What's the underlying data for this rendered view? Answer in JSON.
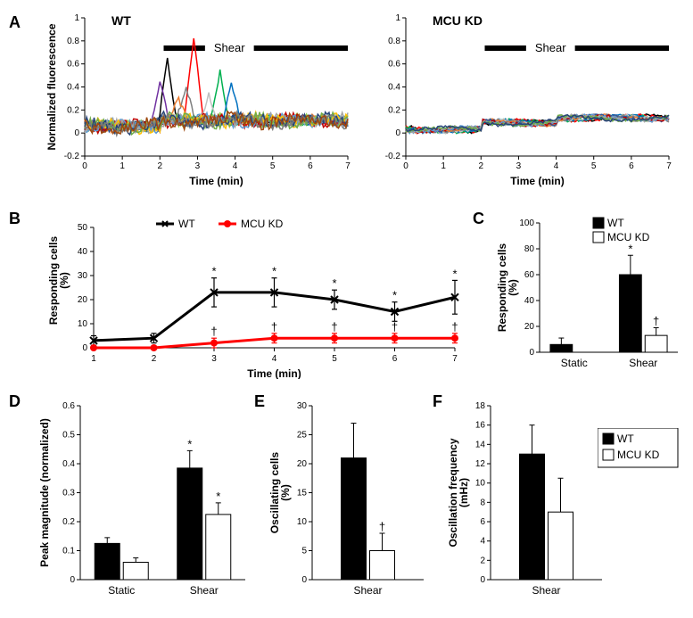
{
  "labels": {
    "A": "A",
    "B": "B",
    "C": "C",
    "D": "D",
    "E": "E",
    "F": "F"
  },
  "panelA": {
    "left_title": "WT",
    "right_title": "MCU KD",
    "shear_label": "Shear",
    "ylabel": "Normalized fluorescence",
    "xlabel": "Time (min)",
    "ylim": [
      -0.2,
      1.0
    ],
    "ytick_step": 0.2,
    "xlim": [
      0,
      7
    ],
    "xtick_step": 1,
    "shear_bars": [
      [
        2.1,
        3.2
      ],
      [
        4.5,
        7.0
      ]
    ],
    "wt_traces_colors": [
      "#000000",
      "#7030a0",
      "#ff0000",
      "#00b050",
      "#0070c0",
      "#c0c0c0",
      "#808080",
      "#ed7d31",
      "#2f5597",
      "#92d050",
      "#c00000",
      "#5b9bd5",
      "#a5a5a5",
      "#ffc000",
      "#70ad47",
      "#264478",
      "#7b7b7b",
      "#9e480e"
    ],
    "kd_traces_colors": [
      "#000000",
      "#ff0000",
      "#00b050",
      "#0070c0",
      "#c0c0c0",
      "#808080",
      "#ed7d31",
      "#2f5597",
      "#c00000",
      "#5b9bd5",
      "#a5a5a5",
      "#70ad47",
      "#264478"
    ],
    "label_fontsize": 12
  },
  "panelB": {
    "ylabel_l1": "Responding cells",
    "ylabel_l2": "(%)",
    "xlabel": "Time (min)",
    "ylim": [
      0,
      50
    ],
    "ytick_step": 10,
    "xticks": [
      1,
      2,
      3,
      4,
      5,
      6,
      7
    ],
    "wt": {
      "label": "WT",
      "color": "#000000",
      "marker": "x",
      "values": [
        3,
        4,
        23,
        23,
        20,
        15,
        21
      ],
      "err": [
        2,
        2,
        6,
        6,
        4,
        4,
        7
      ],
      "sig": [
        "",
        "",
        "*",
        "*",
        "*",
        "*",
        "*"
      ]
    },
    "kd": {
      "label": "MCU KD",
      "color": "#ff0000",
      "marker": "o",
      "values": [
        0,
        0,
        2,
        4,
        4,
        4,
        4
      ],
      "err": [
        0,
        0,
        2,
        2,
        2,
        2,
        2
      ],
      "sig": [
        "",
        "",
        "†",
        "†",
        "†",
        "†",
        "†"
      ]
    },
    "line_width": 3
  },
  "panelC": {
    "ylabel_l1": "Responding cells",
    "ylabel_l2": "(%)",
    "ylim": [
      0,
      100
    ],
    "ytick_step": 20,
    "categories": [
      "Static",
      "Shear"
    ],
    "series": [
      {
        "label": "WT",
        "color": "#000000",
        "values": [
          6,
          60
        ],
        "err": [
          5,
          15
        ],
        "sig": [
          "",
          "*"
        ]
      },
      {
        "label": "MCU KD",
        "color": "#ffffff",
        "values": [
          0,
          13
        ],
        "err": [
          0,
          6
        ],
        "sig": [
          "",
          "†"
        ]
      }
    ],
    "legend": {
      "wt": "WT",
      "kd": "MCU KD"
    }
  },
  "panelD": {
    "ylabel": "Peak magnitude (normalized)",
    "ylim": [
      0,
      0.6
    ],
    "ytick_step": 0.1,
    "categories": [
      "Static",
      "Shear"
    ],
    "series": [
      {
        "label": "WT",
        "color": "#000000",
        "values": [
          0.125,
          0.385
        ],
        "err": [
          0.02,
          0.06
        ],
        "sig": [
          "",
          "*"
        ]
      },
      {
        "label": "MCU KD",
        "color": "#ffffff",
        "values": [
          0.06,
          0.225
        ],
        "err": [
          0.015,
          0.04
        ],
        "sig": [
          "",
          "*"
        ]
      }
    ]
  },
  "panelE": {
    "ylabel_l1": "Oscillating cells",
    "ylabel_l2": "(%)",
    "ylim": [
      0,
      30
    ],
    "ytick_step": 5,
    "categories": [
      "Shear"
    ],
    "series": [
      {
        "label": "WT",
        "color": "#000000",
        "values": [
          21
        ],
        "err": [
          6
        ],
        "sig": [
          ""
        ]
      },
      {
        "label": "MCU KD",
        "color": "#ffffff",
        "values": [
          5
        ],
        "err": [
          3
        ],
        "sig": [
          "†"
        ]
      }
    ]
  },
  "panelF": {
    "ylabel_l1": "Oscillation frequency",
    "ylabel_l2": "(mHz)",
    "ylim": [
      0,
      18
    ],
    "ytick_step": 2,
    "categories": [
      "Shear"
    ],
    "series": [
      {
        "label": "WT",
        "color": "#000000",
        "values": [
          13
        ],
        "err": [
          3
        ],
        "sig": [
          ""
        ]
      },
      {
        "label": "MCU KD",
        "color": "#ffffff",
        "values": [
          7
        ],
        "err": [
          3.5
        ],
        "sig": [
          ""
        ]
      }
    ],
    "legend": {
      "wt": "WT",
      "kd": "MCU KD"
    }
  },
  "colors": {
    "bg": "#ffffff",
    "axis": "#000000"
  }
}
